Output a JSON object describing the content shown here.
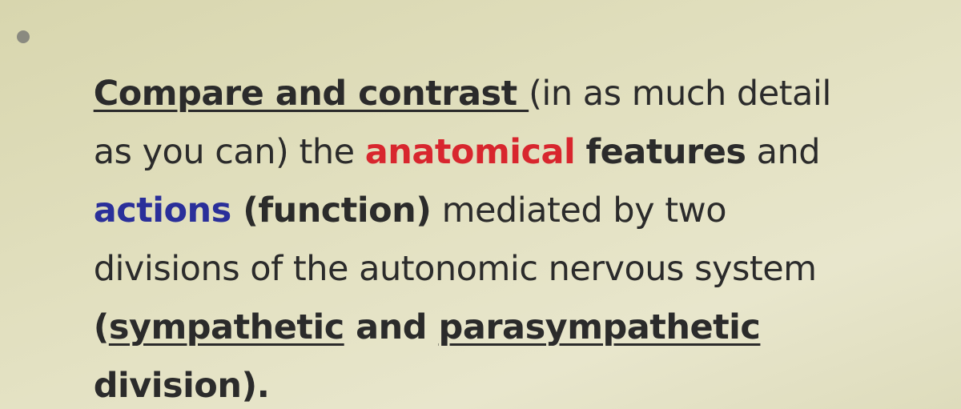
{
  "bullet_text": {
    "lines": [
      {
        "runs": [
          "Compare and contrast ",
          "(in as much detail"
        ]
      },
      {
        "runs": [
          "as you can) the ",
          "anatomical",
          " ",
          "features",
          " and"
        ]
      },
      {
        "runs": [
          "actions",
          " (function)",
          " mediated by two"
        ]
      },
      {
        "runs": [
          "divisions of the autonomic nervous system"
        ]
      },
      {
        "runs": [
          "(",
          "sympathetic",
          " and ",
          "parasympathetic"
        ]
      },
      {
        "runs": [
          "division)."
        ]
      }
    ]
  }
}
